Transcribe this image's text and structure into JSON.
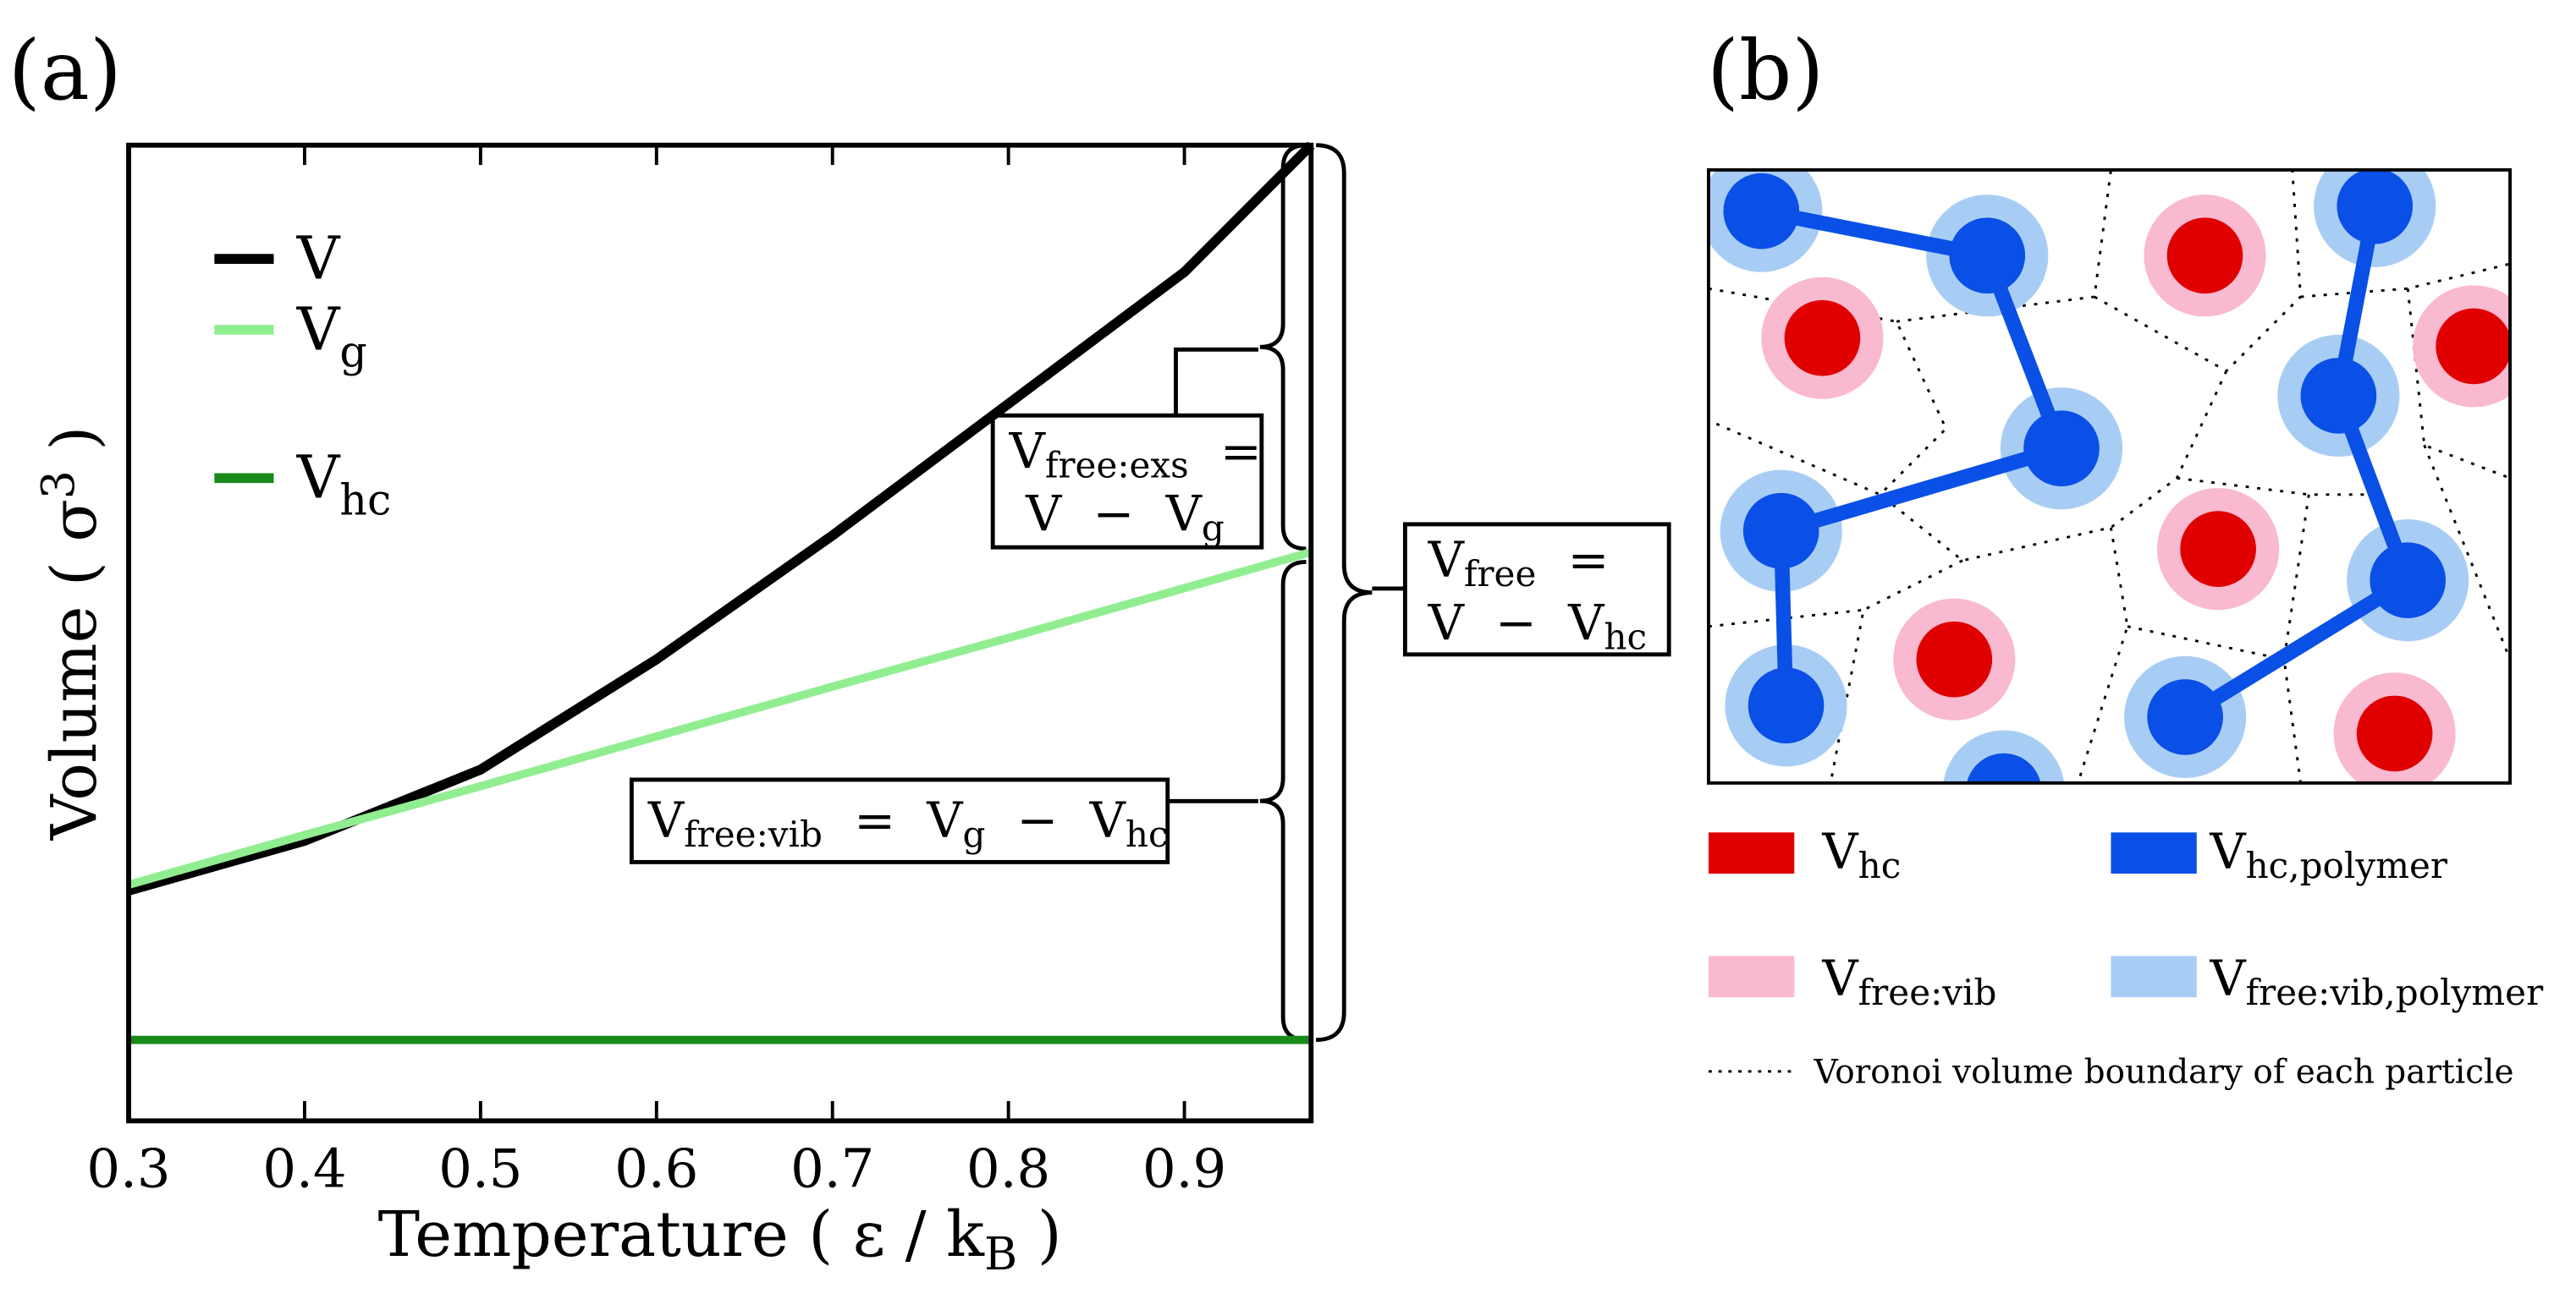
{
  "chart_data": {
    "type": "line",
    "panel_label": "(a)",
    "xlabel": [
      "Temperature ( ε / k",
      "B",
      " )"
    ],
    "ylabel": [
      "Volume ( σ",
      "3",
      " )"
    ],
    "xlim": [
      0.3,
      0.972
    ],
    "ylim": [
      0,
      100
    ],
    "xticks": [
      0.3,
      0.4,
      0.5,
      0.6,
      0.7,
      0.8,
      0.9
    ],
    "x": [
      0.3,
      0.4,
      0.5,
      0.6,
      0.7,
      0.8,
      0.9,
      0.972
    ],
    "series": [
      {
        "name": "V",
        "name_sub": "",
        "color": "#000000",
        "values": [
          23.6,
          28.7,
          36.0,
          47.3,
          60.0,
          73.5,
          87.0,
          100
        ]
      },
      {
        "name": "V",
        "name_sub": "g",
        "color": "#90ee90",
        "values": [
          24.2,
          29.3,
          34.3,
          39.4,
          44.5,
          49.5,
          54.6,
          58.3
        ]
      },
      {
        "name": "V",
        "name_sub": "hc",
        "color": "#1a8a1a",
        "values": [
          8.3,
          8.3,
          8.3,
          8.3,
          8.3,
          8.3,
          8.3,
          8.3
        ]
      }
    ],
    "annotations": [
      {
        "lines": [
          [
            "V",
            "free:exs",
            "  ="
          ],
          [
            "V  −  V",
            "g"
          ]
        ]
      },
      {
        "lines": [
          [
            "V",
            "free",
            "  ="
          ],
          [
            "V  −  V",
            "hc"
          ]
        ]
      },
      {
        "lines": [
          [
            "V",
            "free:vib",
            "  =  V",
            "g",
            "  −  V",
            "hc"
          ]
        ]
      }
    ]
  },
  "diagram": {
    "panel_label": "(b)",
    "legend": [
      [
        "V",
        "hc"
      ],
      [
        "V",
        "hc,polymer"
      ],
      [
        "V",
        "free:vib"
      ],
      [
        "V",
        "free:vib,polymer"
      ]
    ],
    "boundary_note": "Voronoi volume boundary of each particle"
  }
}
